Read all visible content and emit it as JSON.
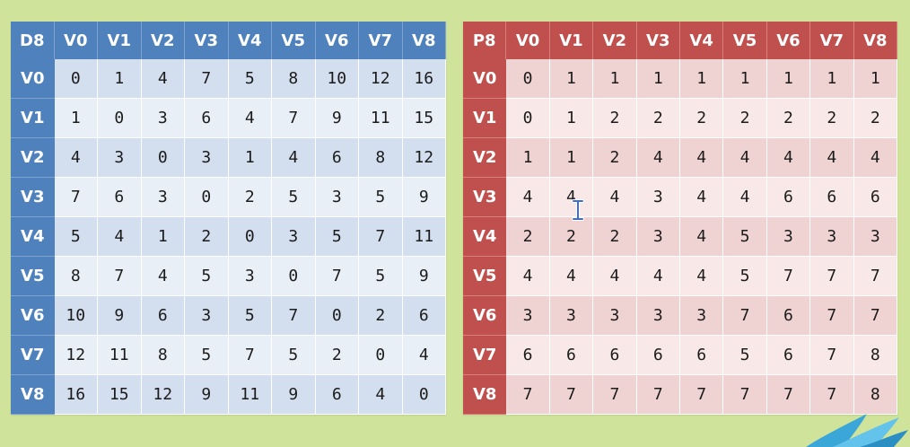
{
  "colors": {
    "background": "#cfe39b",
    "d_header": "#4f81bd",
    "p_header": "#c0504d"
  },
  "tables": {
    "d8": {
      "corner": "D8",
      "cols": [
        "V0",
        "V1",
        "V2",
        "V3",
        "V4",
        "V5",
        "V6",
        "V7",
        "V8"
      ],
      "rows": [
        {
          "label": "V0",
          "cells": [
            "0",
            "1",
            "4",
            "7",
            "5",
            "8",
            "10",
            "12",
            "16"
          ]
        },
        {
          "label": "V1",
          "cells": [
            "1",
            "0",
            "3",
            "6",
            "4",
            "7",
            "9",
            "11",
            "15"
          ]
        },
        {
          "label": "V2",
          "cells": [
            "4",
            "3",
            "0",
            "3",
            "1",
            "4",
            "6",
            "8",
            "12"
          ]
        },
        {
          "label": "V3",
          "cells": [
            "7",
            "6",
            "3",
            "0",
            "2",
            "5",
            "3",
            "5",
            "9"
          ]
        },
        {
          "label": "V4",
          "cells": [
            "5",
            "4",
            "1",
            "2",
            "0",
            "3",
            "5",
            "7",
            "11"
          ]
        },
        {
          "label": "V5",
          "cells": [
            "8",
            "7",
            "4",
            "5",
            "3",
            "0",
            "7",
            "5",
            "9"
          ]
        },
        {
          "label": "V6",
          "cells": [
            "10",
            "9",
            "6",
            "3",
            "5",
            "7",
            "0",
            "2",
            "6"
          ]
        },
        {
          "label": "V7",
          "cells": [
            "12",
            "11",
            "8",
            "5",
            "7",
            "5",
            "2",
            "0",
            "4"
          ]
        },
        {
          "label": "V8",
          "cells": [
            "16",
            "15",
            "12",
            "9",
            "11",
            "9",
            "6",
            "4",
            "0"
          ]
        }
      ]
    },
    "p8": {
      "corner": "P8",
      "cols": [
        "V0",
        "V1",
        "V2",
        "V3",
        "V4",
        "V5",
        "V6",
        "V7",
        "V8"
      ],
      "rows": [
        {
          "label": "V0",
          "cells": [
            "0",
            "1",
            "1",
            "1",
            "1",
            "1",
            "1",
            "1",
            "1"
          ]
        },
        {
          "label": "V1",
          "cells": [
            "0",
            "1",
            "2",
            "2",
            "2",
            "2",
            "2",
            "2",
            "2"
          ]
        },
        {
          "label": "V2",
          "cells": [
            "1",
            "1",
            "2",
            "4",
            "4",
            "4",
            "4",
            "4",
            "4"
          ]
        },
        {
          "label": "V3",
          "cells": [
            "4",
            "4",
            "4",
            "3",
            "4",
            "4",
            "6",
            "6",
            "6"
          ]
        },
        {
          "label": "V4",
          "cells": [
            "2",
            "2",
            "2",
            "3",
            "4",
            "5",
            "3",
            "3",
            "3"
          ]
        },
        {
          "label": "V5",
          "cells": [
            "4",
            "4",
            "4",
            "4",
            "4",
            "5",
            "7",
            "7",
            "7"
          ]
        },
        {
          "label": "V6",
          "cells": [
            "3",
            "3",
            "3",
            "3",
            "3",
            "7",
            "6",
            "7",
            "7"
          ]
        },
        {
          "label": "V7",
          "cells": [
            "6",
            "6",
            "6",
            "6",
            "6",
            "5",
            "6",
            "7",
            "8"
          ]
        },
        {
          "label": "V8",
          "cells": [
            "7",
            "7",
            "7",
            "7",
            "7",
            "7",
            "7",
            "7",
            "8"
          ]
        }
      ]
    }
  },
  "cursor": {
    "icon": "text-cursor-icon"
  },
  "logo": {
    "icon": "swoosh-logo-icon"
  }
}
